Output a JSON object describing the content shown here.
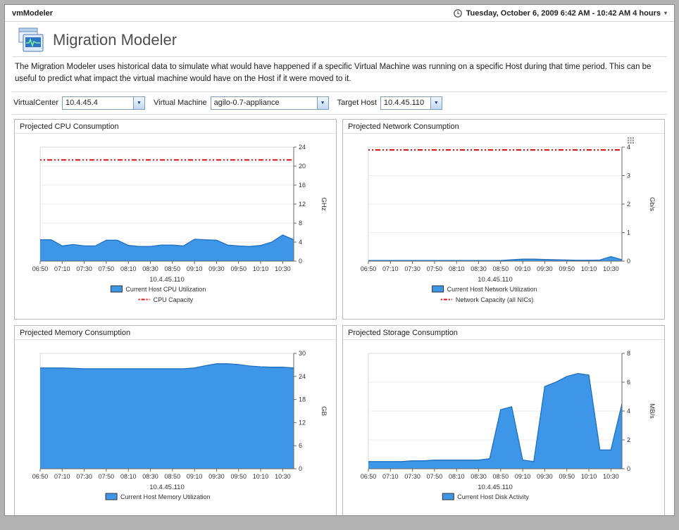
{
  "topbar": {
    "app_title": "vmModeler",
    "time_range": "Tuesday, October 6, 2009 6:42 AM - 10:42 AM 4 hours"
  },
  "header": {
    "title": "Migration Modeler",
    "description": "The Migration Modeler uses historical data to simulate what would have happened if a specific Virtual Machine was running on a specific Host during that time period. This can be useful to predict what impact the virtual machine would have on the Host if it were moved to it."
  },
  "filters": {
    "virtualcenter": {
      "label": "VirtualCenter",
      "value": "10.4.45.4"
    },
    "virtual_machine": {
      "label": "Virtual Machine",
      "value": "agilo-0.7-appliance"
    },
    "target_host": {
      "label": "Target Host",
      "value": "10.4.45.110"
    }
  },
  "colors": {
    "area_fill": "#3E96E8",
    "area_line": "#1F6FBE",
    "capacity_line": "#E01010"
  },
  "chart_data": [
    {
      "id": "cpu",
      "type": "area",
      "title": "Projected CPU Consumption",
      "xlabel": "10.4.45.110",
      "ylabel": "GHz",
      "ylim": [
        0,
        24
      ],
      "yticks": [
        0,
        4,
        8,
        12,
        16,
        20,
        24
      ],
      "xticks": [
        "06:50",
        "07:10",
        "07:30",
        "07:50",
        "08:10",
        "08:30",
        "08:50",
        "09:10",
        "09:30",
        "09:50",
        "10:10",
        "10:30"
      ],
      "series": [
        {
          "name": "Current Host CPU Utilization",
          "values": [
            4.5,
            4.5,
            3.2,
            3.5,
            3.2,
            3.2,
            4.4,
            4.4,
            3.3,
            3.1,
            3.1,
            3.4,
            3.4,
            3.2,
            4.6,
            4.5,
            4.4,
            3.4,
            3.2,
            3.1,
            3.3,
            4.0,
            5.5,
            4.5
          ]
        }
      ],
      "capacity": {
        "name": "CPU Capacity",
        "value": 21.3
      },
      "menu_icon": false
    },
    {
      "id": "network",
      "type": "area",
      "title": "Projected Network Consumption",
      "xlabel": "10.4.45.110",
      "ylabel": "Gb/s",
      "ylim": [
        0,
        4
      ],
      "yticks": [
        0,
        1,
        2,
        3,
        4
      ],
      "xticks": [
        "06:50",
        "07:10",
        "07:30",
        "07:50",
        "08:10",
        "08:30",
        "08:50",
        "09:10",
        "09:30",
        "09:50",
        "10:10",
        "10:30"
      ],
      "series": [
        {
          "name": "Current Host Network Utilization",
          "values": [
            0.02,
            0.02,
            0.02,
            0.02,
            0.02,
            0.02,
            0.02,
            0.02,
            0.02,
            0.02,
            0.02,
            0.02,
            0.02,
            0.05,
            0.07,
            0.07,
            0.06,
            0.05,
            0.04,
            0.03,
            0.03,
            0.04,
            0.16,
            0.05
          ]
        }
      ],
      "capacity": {
        "name": "Network Capacity (all NICs)",
        "value": 3.9
      },
      "menu_icon": true
    },
    {
      "id": "memory",
      "type": "area",
      "title": "Projected Memory Consumption",
      "xlabel": "10.4.45.110",
      "ylabel": "GB",
      "ylim": [
        0,
        30
      ],
      "yticks": [
        0,
        6,
        12,
        18,
        24,
        30
      ],
      "xticks": [
        "06:50",
        "07:10",
        "07:30",
        "07:50",
        "08:10",
        "08:30",
        "08:50",
        "09:10",
        "09:30",
        "09:50",
        "10:10",
        "10:30"
      ],
      "series": [
        {
          "name": "Current Host Memory Utilization",
          "values": [
            26.2,
            26.2,
            26.2,
            26.1,
            26.0,
            26.0,
            26.0,
            26.0,
            26.0,
            26.0,
            26.0,
            26.0,
            26.0,
            26.0,
            26.2,
            26.8,
            27.3,
            27.3,
            27.1,
            26.7,
            26.5,
            26.4,
            26.4,
            26.2
          ]
        }
      ],
      "capacity": null,
      "menu_icon": false
    },
    {
      "id": "storage",
      "type": "area",
      "title": "Projected Storage Consumption",
      "xlabel": "10.4.45.110",
      "ylabel": "MB/s",
      "ylim": [
        0,
        8
      ],
      "yticks": [
        0,
        2,
        4,
        6,
        8
      ],
      "xticks": [
        "06:50",
        "07:10",
        "07:30",
        "07:50",
        "08:10",
        "08:30",
        "08:50",
        "09:10",
        "09:30",
        "09:50",
        "10:10",
        "10:30"
      ],
      "series": [
        {
          "name": "Current Host Disk Activity",
          "values": [
            0.5,
            0.5,
            0.5,
            0.5,
            0.55,
            0.55,
            0.6,
            0.6,
            0.6,
            0.6,
            0.6,
            0.7,
            4.1,
            4.3,
            0.6,
            0.5,
            5.7,
            6.0,
            6.4,
            6.6,
            6.5,
            1.3,
            1.3,
            4.5
          ]
        }
      ],
      "capacity": null,
      "menu_icon": false
    }
  ]
}
